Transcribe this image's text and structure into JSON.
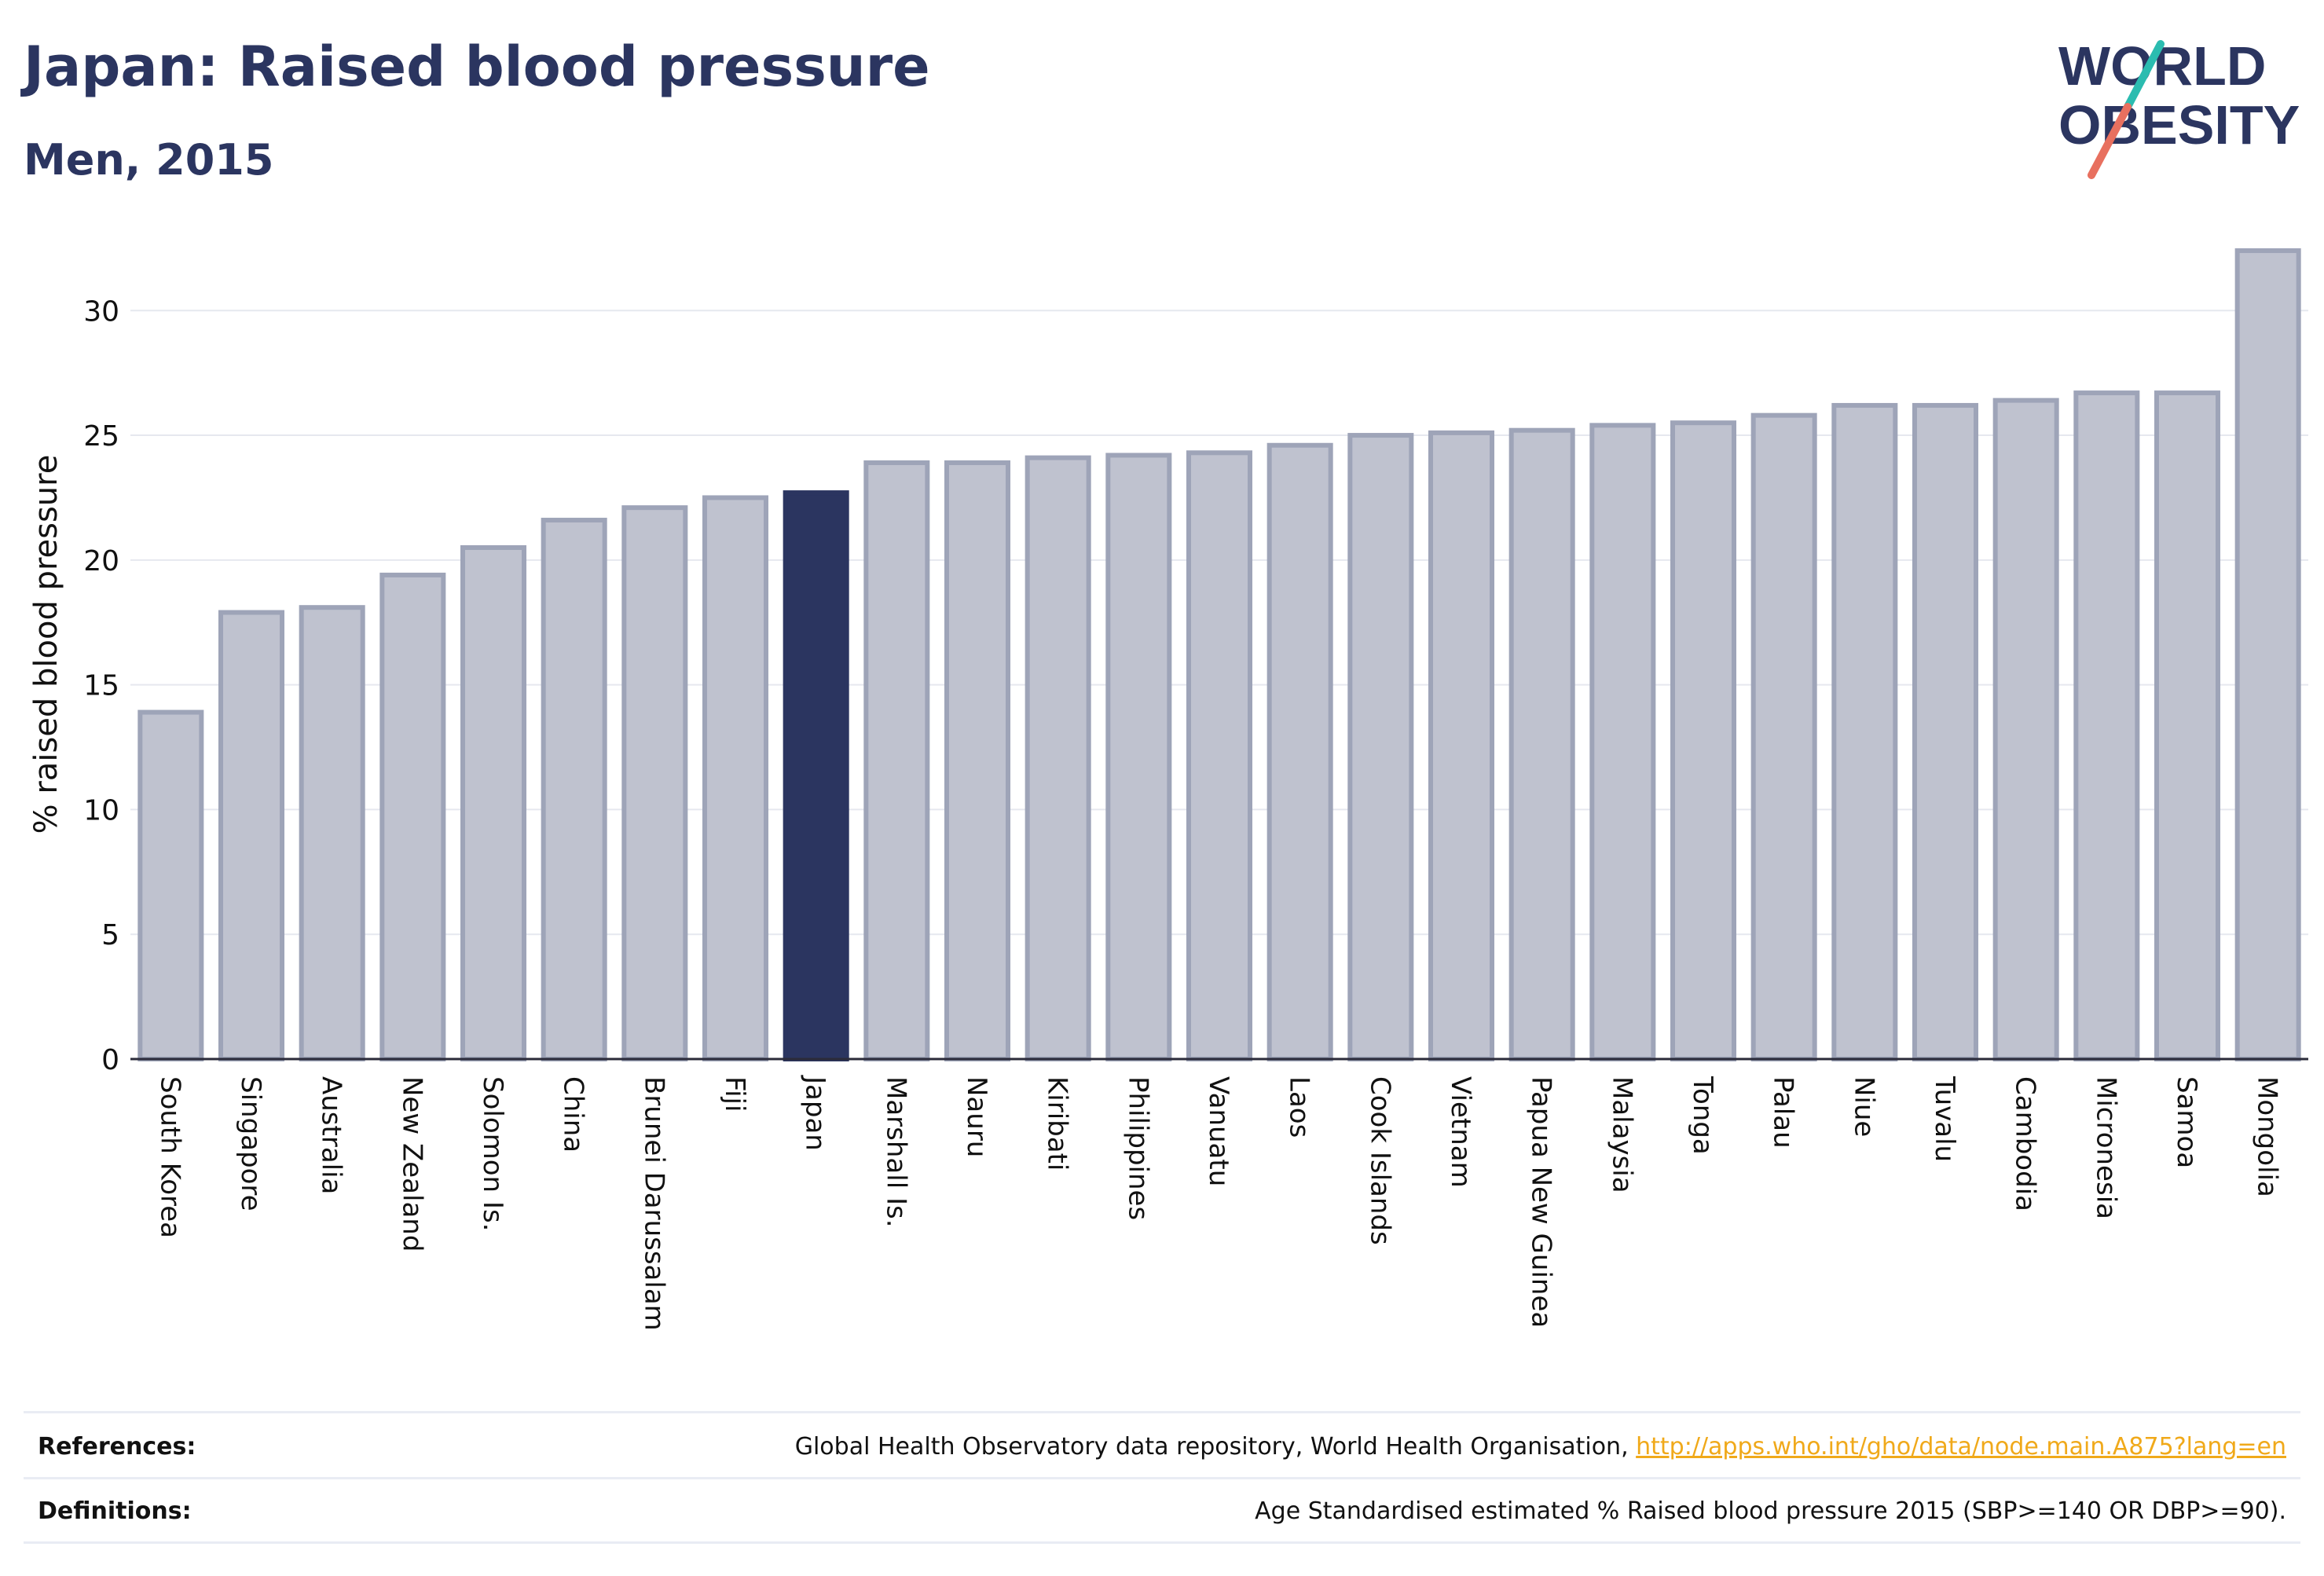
{
  "title": "Japan: Raised blood pressure",
  "subtitle": "Men, 2015",
  "logo": {
    "line1": "WORLD",
    "line2": "OBESITY"
  },
  "colors": {
    "title": "#2b3560",
    "bar": "#bfc2cf",
    "bar_border": "#9ea4b8",
    "highlight": "#2b3560",
    "link": "#f0a91a",
    "logo_teal": "#2bbcb0",
    "logo_coral": "#e8705f"
  },
  "chart_data": {
    "type": "bar",
    "ylabel": "% raised blood pressure",
    "xlabel": "",
    "ylim": [
      0,
      33
    ],
    "yticks": [
      0,
      5,
      10,
      15,
      20,
      25,
      30
    ],
    "grid": true,
    "highlight": "Japan",
    "categories": [
      "South Korea",
      "Singapore",
      "Australia",
      "New Zealand",
      "Solomon Is.",
      "China",
      "Brunei Darussalam",
      "Fiji",
      "Japan",
      "Marshall Is.",
      "Nauru",
      "Kiribati",
      "Philippines",
      "Vanuatu",
      "Laos",
      "Cook Islands",
      "Vietnam",
      "Papua New Guinea",
      "Malaysia",
      "Tonga",
      "Palau",
      "Niue",
      "Tuvalu",
      "Cambodia",
      "Micronesia",
      "Samoa",
      "Mongolia"
    ],
    "values": [
      13.9,
      17.9,
      18.1,
      19.4,
      20.5,
      21.6,
      22.1,
      22.5,
      22.7,
      23.9,
      23.9,
      24.1,
      24.2,
      24.3,
      24.6,
      25.0,
      25.1,
      25.2,
      25.4,
      25.5,
      25.8,
      26.2,
      26.2,
      26.4,
      26.7,
      26.7,
      32.4
    ]
  },
  "footer": {
    "references_label": "References:",
    "references_text": "Global Health Observatory data repository, World Health Organisation, ",
    "references_link": "http://apps.who.int/gho/data/node.main.A875?lang=en",
    "definitions_label": "Definitions:",
    "definitions_text": "Age Standardised estimated % Raised blood pressure 2015 (SBP>=140 OR DBP>=90)."
  }
}
